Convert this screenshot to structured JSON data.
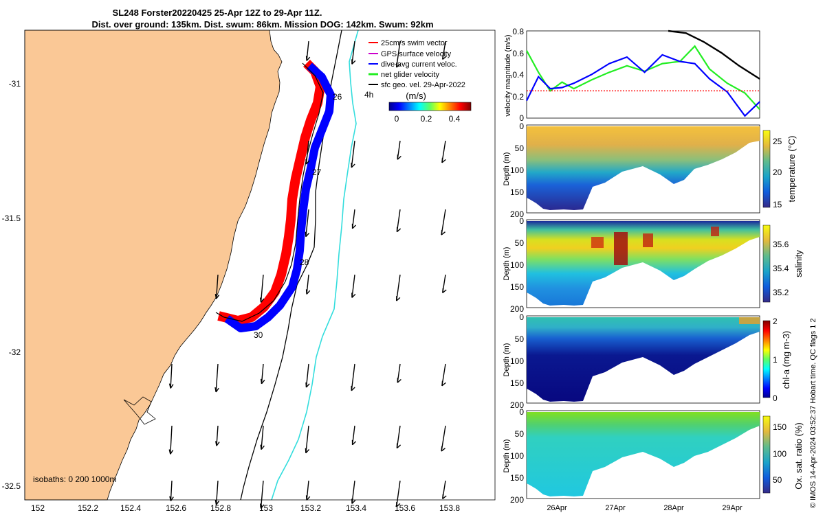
{
  "figure": {
    "title_line1": "SL248 Forster20220425 25-Apr 12Z to 29-Apr 11Z.",
    "title_line2": "Dist. over ground: 135km. Dist. swum: 86km. Mission DOG: 142km. Swum: 92km",
    "credit": "© IMOS 14-Apr-2024 03:52:37 Hobart time. QC flags 1  2",
    "colors": {
      "land": "#fac896",
      "sea": "#ffffff",
      "swim": "#ff0000",
      "gps": "#cc00cc",
      "current": "#0000ff",
      "net": "#22ee22",
      "geo": "#000000",
      "isobath200": "#000000",
      "isobath1000": "#33dddd"
    }
  },
  "map": {
    "x_ticks": [
      "152",
      "152.2",
      "152.4",
      "152.6",
      "152.8",
      "153",
      "153.2",
      "153.4",
      "153.6",
      "153.8"
    ],
    "y_ticks": [
      "-31",
      "-31.5",
      "-32",
      "-32.5"
    ],
    "isobaths_label": "isobaths: 0   200  1000m",
    "day_labels": [
      "26",
      "27",
      "28",
      "30"
    ],
    "scale_label": "4h",
    "legend": [
      {
        "label": "25cm/s swim vector",
        "color": "#ff0000"
      },
      {
        "label": "GPS surface velocity",
        "color": "#cc00cc"
      },
      {
        "label": "dive-avg current veloc.",
        "color": "#0000ff"
      },
      {
        "label": "net glider velocity",
        "color": "#22ee22"
      },
      {
        "label": "sfc geo. vel. 29-Apr-2022",
        "color": "#000000"
      }
    ],
    "colorbar": {
      "label": "(m/s)",
      "ticks": [
        "0",
        "0.2",
        "0.4"
      ]
    }
  },
  "panels": {
    "time_ticks": [
      "26Apr",
      "27Apr",
      "28Apr",
      "29Apr"
    ],
    "items": [
      {
        "ylabel": "velocity magnitude (m/s)",
        "yticks": [
          "0",
          "0.2",
          "0.4",
          "0.6",
          "0.8"
        ]
      },
      {
        "ylabel": "Depth (m)",
        "yticks": [
          "0",
          "50",
          "100",
          "150",
          "200"
        ],
        "cblabel": "temperature (°C)",
        "cbticks": [
          "25",
          "20",
          "15"
        ]
      },
      {
        "ylabel": "Depth (m)",
        "yticks": [
          "0",
          "50",
          "100",
          "150",
          "200"
        ],
        "cblabel": "salinity",
        "cbticks": [
          "35.6",
          "35.4",
          "35.2"
        ]
      },
      {
        "ylabel": "Depth (m)",
        "yticks": [
          "0",
          "50",
          "100",
          "150",
          "200"
        ],
        "cblabel": "chl-a (mg m-3)",
        "cbticks": [
          "2",
          "1",
          "0"
        ]
      },
      {
        "ylabel": "Depth (m)",
        "yticks": [
          "0",
          "50",
          "100",
          "150",
          "200"
        ],
        "cblabel": "Ox. sat. ratio (%)",
        "cbticks": [
          "150",
          "100",
          "50"
        ]
      }
    ]
  },
  "chart_data": [
    {
      "type": "line",
      "name": "velocity magnitude time series",
      "x_unit": "days of April 2022",
      "ylim": [
        0,
        0.8
      ],
      "series": [
        {
          "name": "net glider velocity",
          "x": [
            25.5,
            25.7,
            25.9,
            26.1,
            26.3,
            26.6,
            26.9,
            27.2,
            27.5,
            27.8,
            28.1,
            28.35,
            28.6,
            28.9,
            29.2,
            29.45
          ],
          "values": [
            0.62,
            0.42,
            0.25,
            0.33,
            0.27,
            0.35,
            0.42,
            0.48,
            0.43,
            0.5,
            0.52,
            0.66,
            0.45,
            0.32,
            0.23,
            0.08
          ]
        },
        {
          "name": "dive-avg current veloc.",
          "x": [
            25.5,
            25.7,
            25.9,
            26.1,
            26.3,
            26.6,
            26.9,
            27.2,
            27.5,
            27.8,
            28.1,
            28.35,
            28.6,
            28.9,
            29.2,
            29.45
          ],
          "values": [
            0.16,
            0.38,
            0.27,
            0.28,
            0.32,
            0.4,
            0.5,
            0.56,
            0.42,
            0.58,
            0.52,
            0.5,
            0.36,
            0.24,
            0.02,
            0.15
          ]
        },
        {
          "name": "swim speed",
          "x": [
            25.5,
            29.45
          ],
          "values": [
            0.25,
            0.25
          ]
        },
        {
          "name": "sfc geo. vel.",
          "x": [
            27.9,
            28.2,
            28.5,
            28.8,
            29.1,
            29.45
          ],
          "values": [
            0.8,
            0.78,
            0.7,
            0.6,
            0.48,
            0.36
          ]
        }
      ]
    }
  ]
}
